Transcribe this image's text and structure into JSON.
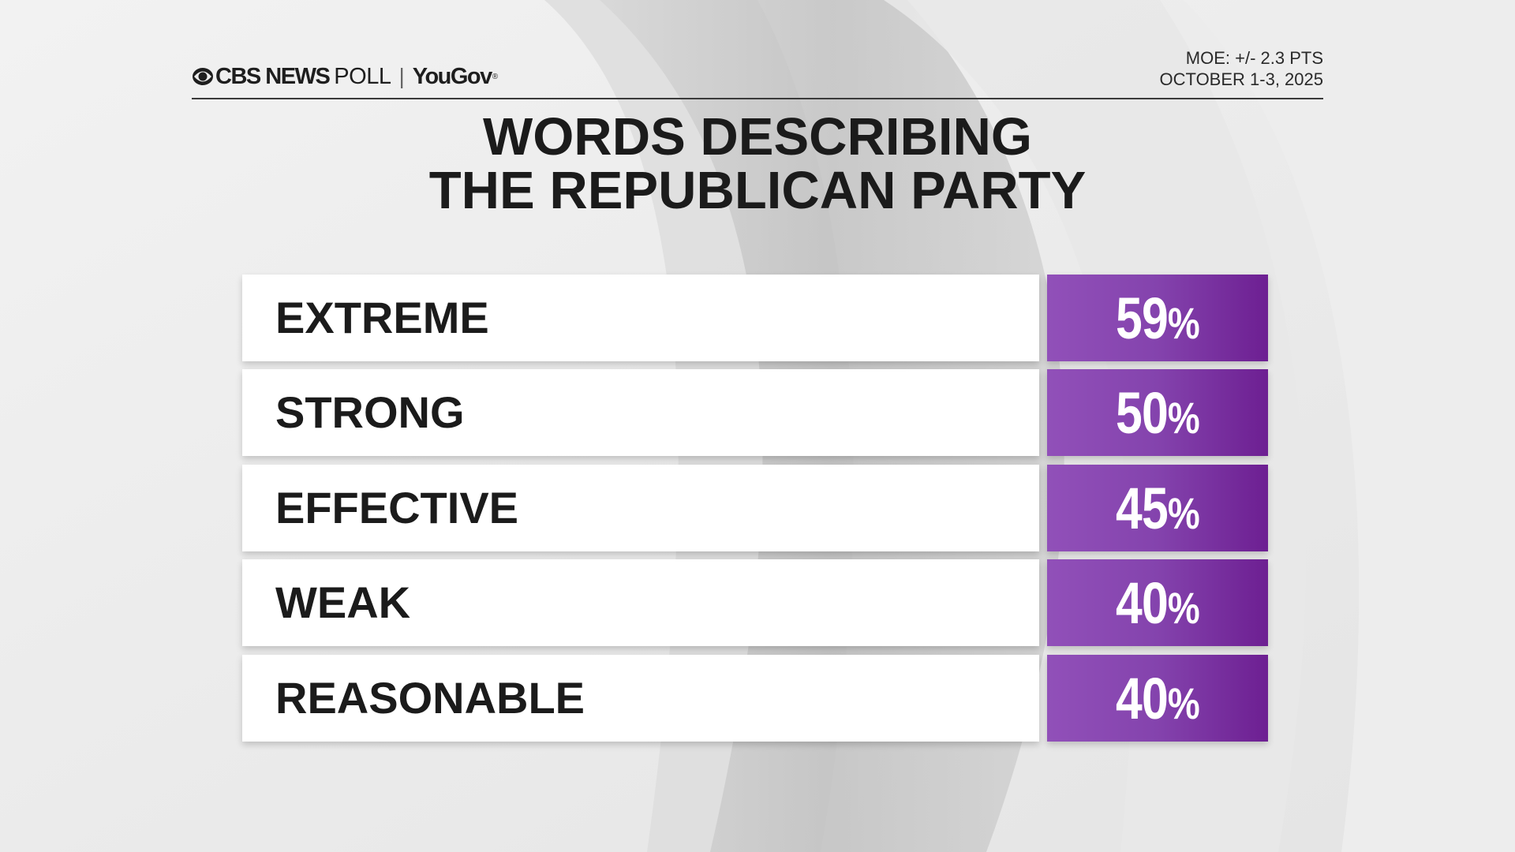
{
  "header": {
    "brand_network": "CBS NEWS",
    "brand_product": "POLL",
    "separator": "|",
    "partner": "YouGov",
    "moe": "MOE: +/- 2.3 PTS",
    "dates": "OCTOBER 1-3, 2025"
  },
  "title": {
    "line1": "WORDS DESCRIBING",
    "line2": "THE REPUBLICAN PARTY"
  },
  "colors": {
    "bar_purple": "#8443ad",
    "bar_purple_dark": "#6d1f92",
    "label_bg": "#ffffff",
    "text_dark": "#1b1b1b"
  },
  "chart_data": {
    "type": "table",
    "title": "WORDS DESCRIBING THE REPUBLICAN PARTY",
    "categories": [
      "EXTREME",
      "STRONG",
      "EFFECTIVE",
      "WEAK",
      "REASONABLE"
    ],
    "values": [
      59,
      50,
      45,
      40,
      40
    ],
    "unit": "%",
    "rows": [
      {
        "label": "EXTREME",
        "value": "59",
        "unit": "%"
      },
      {
        "label": "STRONG",
        "value": "50",
        "unit": "%"
      },
      {
        "label": "EFFECTIVE",
        "value": "45",
        "unit": "%"
      },
      {
        "label": "WEAK",
        "value": "40",
        "unit": "%"
      },
      {
        "label": "REASONABLE",
        "value": "40",
        "unit": "%"
      }
    ]
  }
}
